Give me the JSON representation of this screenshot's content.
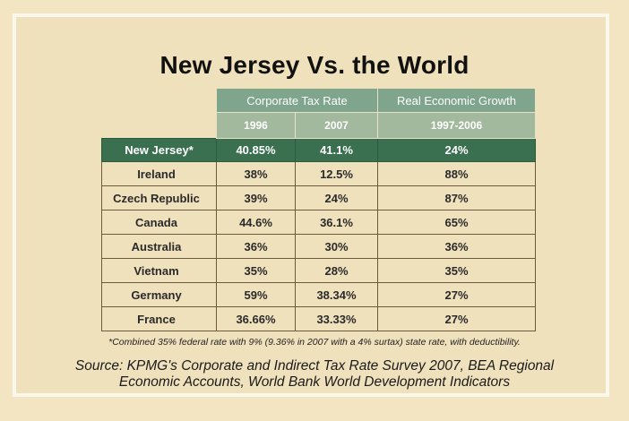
{
  "title": "New Jersey Vs. the World",
  "headers": {
    "corporate_tax_rate": "Corporate Tax Rate",
    "real_economic_growth": "Real Economic Growth",
    "year_1996": "1996",
    "year_2007": "2007",
    "period_growth": "1997-2006"
  },
  "rows": [
    {
      "country": "New Jersey*",
      "rate_1996": "40.85%",
      "rate_2007": "41.1%",
      "growth": "24%"
    },
    {
      "country": "Ireland",
      "rate_1996": "38%",
      "rate_2007": "12.5%",
      "growth": "88%"
    },
    {
      "country": "Czech Republic",
      "rate_1996": "39%",
      "rate_2007": "24%",
      "growth": "87%"
    },
    {
      "country": "Canada",
      "rate_1996": "44.6%",
      "rate_2007": "36.1%",
      "growth": "65%"
    },
    {
      "country": "Australia",
      "rate_1996": "36%",
      "rate_2007": "30%",
      "growth": "36%"
    },
    {
      "country": "Vietnam",
      "rate_1996": "35%",
      "rate_2007": "28%",
      "growth": "35%"
    },
    {
      "country": "Germany",
      "rate_1996": "59%",
      "rate_2007": "38.34%",
      "growth": "27%"
    },
    {
      "country": "France",
      "rate_1996": "36.66%",
      "rate_2007": "33.33%",
      "growth": "27%"
    }
  ],
  "footnote": "*Combined 35% federal rate with 9% (9.36% in 2007 with a 4% surtax) state rate, with deductibility.",
  "source": {
    "line1": "Source: KPMG's Corporate and Indirect Tax Rate Survey 2007, BEA Regional",
    "line2": "Economic Accounts, World Bank World Development Indicators"
  },
  "colors": {
    "background": "#f3e5c2",
    "header_green": "#7fa58d",
    "subheader_green": "#a2b99d",
    "highlight_row": "#3a6f4f"
  }
}
